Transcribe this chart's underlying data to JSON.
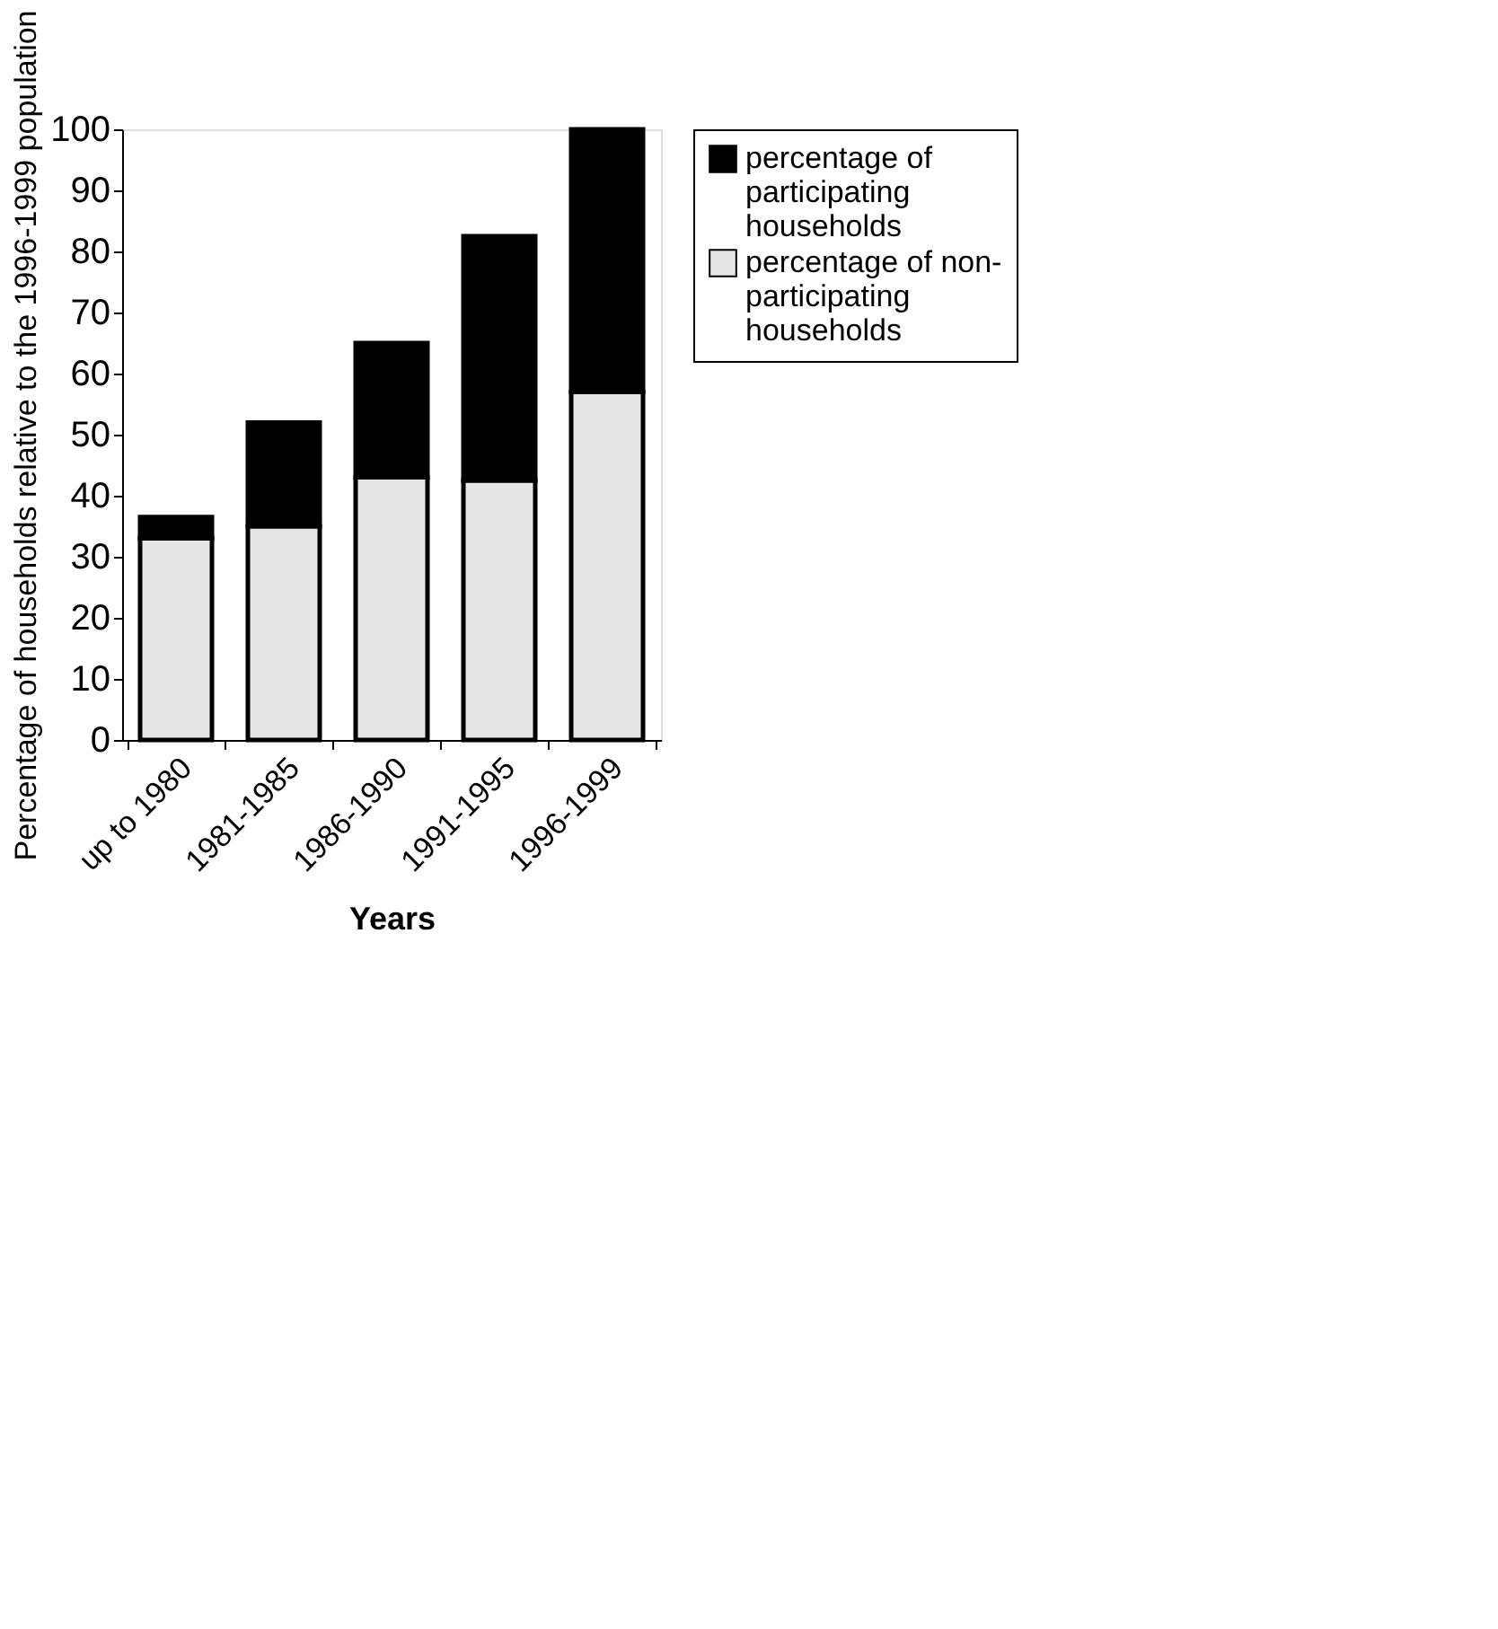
{
  "chart_data": {
    "type": "bar",
    "stacked": true,
    "xlabel": "Years",
    "ylabel": "Percentage of households relative to the 1996-1999 population",
    "categories": [
      "up to 1980",
      "1981-1985",
      "1986-1990",
      "1991-1995",
      "1996-1999"
    ],
    "series": [
      {
        "name": "percentage of non-participating households",
        "color": "#e6e6e6",
        "values": [
          33,
          35,
          43,
          42.5,
          57
        ]
      },
      {
        "name": "percentage of participating households",
        "color": "#000000",
        "values": [
          3.5,
          17,
          22,
          40,
          43
        ]
      }
    ],
    "ylim": [
      0,
      100
    ],
    "yticks": [
      0,
      10,
      20,
      30,
      40,
      50,
      60,
      70,
      80,
      90,
      100
    ],
    "grid": false,
    "legend": "right"
  }
}
